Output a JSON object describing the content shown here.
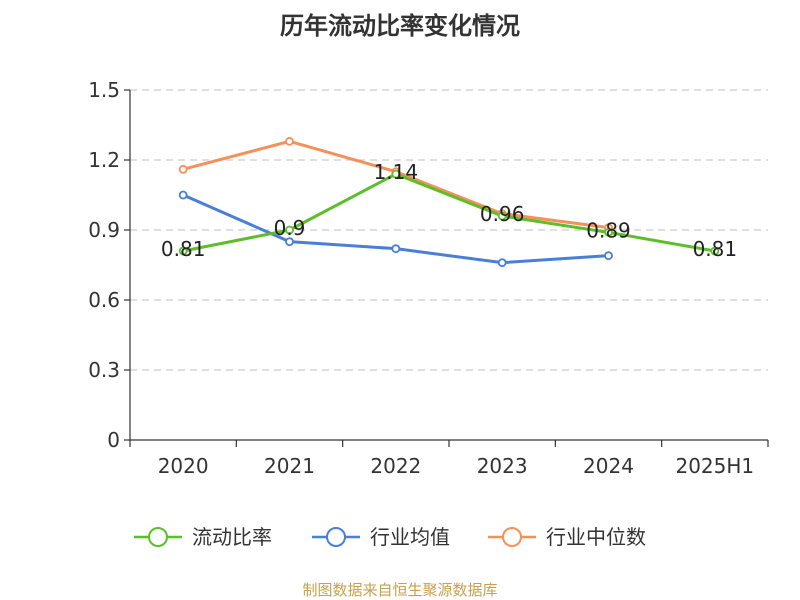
{
  "chart_data": {
    "type": "line",
    "title": "历年流动比率变化情况",
    "xlabel": "",
    "ylabel": "",
    "categories": [
      "2020",
      "2021",
      "2022",
      "2023",
      "2024",
      "2025H1"
    ],
    "ylim": [
      0,
      1.5
    ],
    "yticks": [
      0,
      0.3,
      0.6,
      0.9,
      1.2,
      1.5
    ],
    "ytick_labels": [
      "0",
      "0.3",
      "0.6",
      "0.9",
      "1.2",
      "1.5"
    ],
    "grid": true,
    "legend_position": "bottom",
    "series": [
      {
        "name": "流动比率",
        "color": "#5cbf2a",
        "values": [
          0.81,
          0.9,
          1.14,
          0.96,
          0.89,
          0.81
        ],
        "labels": [
          "0.81",
          "0.9",
          "1.14",
          "0.96",
          "0.89",
          "0.81"
        ]
      },
      {
        "name": "行业均值",
        "color": "#4a7fd8",
        "values": [
          1.05,
          0.85,
          0.82,
          0.76,
          0.79,
          null
        ]
      },
      {
        "name": "行业中位数",
        "color": "#f4905a",
        "values": [
          1.16,
          1.28,
          1.15,
          0.97,
          0.91,
          null
        ]
      }
    ]
  },
  "footer": {
    "source": "制图数据来自恒生聚源数据库"
  }
}
